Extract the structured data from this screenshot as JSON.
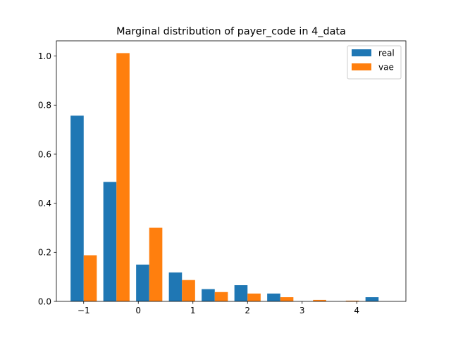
{
  "chart_data": {
    "type": "bar",
    "title": "Marginal distribution of payer_code in 4_data",
    "xlabel": "",
    "ylabel": "",
    "xlim": [
      -1.5,
      4.9
    ],
    "ylim": [
      0,
      1.062
    ],
    "xticks": [
      -1,
      0,
      1,
      2,
      3,
      4
    ],
    "xtick_labels": [
      "−1",
      "0",
      "1",
      "2",
      "3",
      "4"
    ],
    "yticks": [
      0.0,
      0.2,
      0.4,
      0.6,
      0.8,
      1.0
    ],
    "ytick_labels": [
      "0.0",
      "0.2",
      "0.4",
      "0.6",
      "0.8",
      "1.0"
    ],
    "bin_edges": [
      -1.0,
      -0.4,
      0.2,
      0.8,
      1.4,
      2.0,
      2.6,
      3.2,
      3.8,
      4.4,
      5.0
    ],
    "bar_positions": [
      -1.12,
      -0.52,
      0.08,
      0.68,
      1.28,
      1.88,
      2.48,
      3.08,
      3.68,
      4.28
    ],
    "bar_width": 0.24,
    "series": [
      {
        "name": "real",
        "color": "#1f77b4",
        "offset": 0,
        "values": [
          0.757,
          0.487,
          0.15,
          0.118,
          0.05,
          0.066,
          0.032,
          0.0,
          0.0,
          0.017
        ]
      },
      {
        "name": "vae",
        "color": "#ff7f0e",
        "offset": 1,
        "values": [
          0.188,
          1.012,
          0.3,
          0.087,
          0.038,
          0.032,
          0.017,
          0.006,
          0.003,
          0.0
        ]
      }
    ],
    "legend": {
      "placement": "top-right",
      "entries": [
        "real",
        "vae"
      ]
    },
    "grid": false
  }
}
